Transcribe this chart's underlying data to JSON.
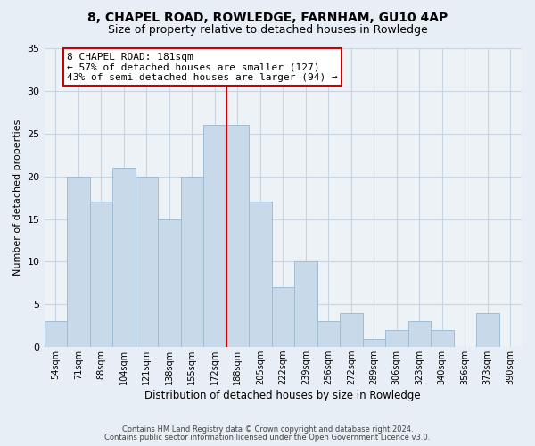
{
  "title": "8, CHAPEL ROAD, ROWLEDGE, FARNHAM, GU10 4AP",
  "subtitle": "Size of property relative to detached houses in Rowledge",
  "xlabel": "Distribution of detached houses by size in Rowledge",
  "ylabel": "Number of detached properties",
  "bin_labels": [
    "54sqm",
    "71sqm",
    "88sqm",
    "104sqm",
    "121sqm",
    "138sqm",
    "155sqm",
    "172sqm",
    "188sqm",
    "205sqm",
    "222sqm",
    "239sqm",
    "256sqm",
    "272sqm",
    "289sqm",
    "306sqm",
    "323sqm",
    "340sqm",
    "356sqm",
    "373sqm",
    "390sqm"
  ],
  "bar_values": [
    3,
    20,
    17,
    21,
    20,
    15,
    20,
    26,
    26,
    17,
    7,
    10,
    3,
    4,
    1,
    2,
    3,
    2,
    0,
    4,
    0
  ],
  "bar_color": "#c8d9ea",
  "bar_edge_color": "#a0bdd4",
  "vline_x_idx": 7.5,
  "vline_color": "#cc0000",
  "annotation_text": "8 CHAPEL ROAD: 181sqm\n← 57% of detached houses are smaller (127)\n43% of semi-detached houses are larger (94) →",
  "annotation_box_color": "#ffffff",
  "annotation_box_edge_color": "#cc0000",
  "ylim": [
    0,
    35
  ],
  "yticks": [
    0,
    5,
    10,
    15,
    20,
    25,
    30,
    35
  ],
  "footer_line1": "Contains HM Land Registry data © Crown copyright and database right 2024.",
  "footer_line2": "Contains public sector information licensed under the Open Government Licence v3.0.",
  "bg_color": "#e8eef5",
  "plot_bg_color": "#edf2f7",
  "grid_color": "#c8d4e0",
  "title_fontsize": 10,
  "subtitle_fontsize": 9,
  "bar_width": 1.0
}
